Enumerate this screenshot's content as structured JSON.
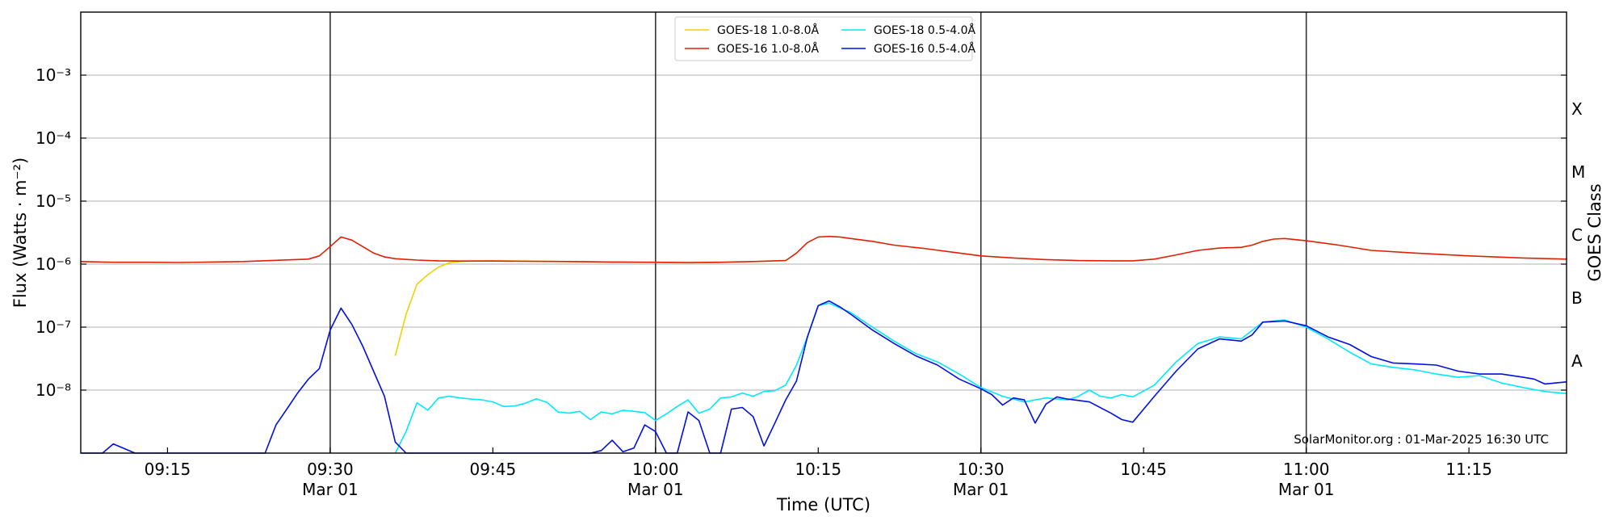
{
  "chart_data": {
    "type": "line",
    "xlabel": "Time (UTC)",
    "ylabel": "Flux (Watts · m⁻²)",
    "ylabel_right": "GOES Class",
    "y_scale": "log",
    "ylim": [
      1e-09,
      0.01
    ],
    "xlim": [
      "09:07",
      "11:24"
    ],
    "grid": "horizontal at decades",
    "legend_position": "top-center",
    "y_ticks": [
      {
        "value": 1e-08,
        "label": "10⁻⁸"
      },
      {
        "value": 1e-07,
        "label": "10⁻⁷"
      },
      {
        "value": 1e-06,
        "label": "10⁻⁶"
      },
      {
        "value": 1e-05,
        "label": "10⁻⁵"
      },
      {
        "value": 0.0001,
        "label": "10⁻⁴"
      },
      {
        "value": 0.001,
        "label": "10⁻³"
      }
    ],
    "x_ticks": [
      {
        "time": "09:15",
        "label": "09:15",
        "sublabel": ""
      },
      {
        "time": "09:30",
        "label": "09:30",
        "sublabel": "Mar 01"
      },
      {
        "time": "09:45",
        "label": "09:45",
        "sublabel": ""
      },
      {
        "time": "10:00",
        "label": "10:00",
        "sublabel": "Mar 01"
      },
      {
        "time": "10:15",
        "label": "10:15",
        "sublabel": ""
      },
      {
        "time": "10:30",
        "label": "10:30",
        "sublabel": "Mar 01"
      },
      {
        "time": "10:45",
        "label": "10:45",
        "sublabel": ""
      },
      {
        "time": "11:00",
        "label": "11:00",
        "sublabel": "Mar 01"
      },
      {
        "time": "11:15",
        "label": "11:15",
        "sublabel": ""
      }
    ],
    "vertical_lines": [
      "09:30",
      "10:00",
      "10:30",
      "11:00"
    ],
    "goes_classes": [
      {
        "label": "A",
        "flux": 3e-08
      },
      {
        "label": "B",
        "flux": 3e-07
      },
      {
        "label": "C",
        "flux": 3e-06
      },
      {
        "label": "M",
        "flux": 3e-05
      },
      {
        "label": "X",
        "flux": 0.0003
      }
    ],
    "legend": [
      {
        "label": "GOES-18 1.0-8.0Å",
        "color": "#f0d000"
      },
      {
        "label": "GOES-16 1.0-8.0Å",
        "color": "#e02000"
      },
      {
        "label": "GOES-18 0.5-4.0Å",
        "color": "#00e8ff"
      },
      {
        "label": "GOES-16 0.5-4.0Å",
        "color": "#0010e0"
      }
    ],
    "series": [
      {
        "name": "GOES-18 1.0-8.0Å",
        "color": "#f0d000",
        "x": [
          "09:36",
          "09:37",
          "09:38",
          "09:39",
          "09:40",
          "09:41",
          "09:42",
          "09:43",
          "09:45",
          "09:48",
          "09:52",
          "09:56",
          "10:00",
          "10:03",
          "10:06"
        ],
        "y": [
          3.5e-08,
          1.6e-07,
          4.8e-07,
          6.8e-07,
          9e-07,
          1.05e-06,
          1.1e-06,
          1.12e-06,
          1.13e-06,
          1.12e-06,
          1.1e-06,
          1.08e-06,
          1.06e-06,
          1.05e-06,
          1.06e-06
        ]
      },
      {
        "name": "GOES-16 1.0-8.0Å",
        "color": "#e02000",
        "x": [
          "09:07",
          "09:10",
          "09:13",
          "09:16",
          "09:19",
          "09:22",
          "09:25",
          "09:28",
          "09:29",
          "09:30",
          "09:31",
          "09:32",
          "09:33",
          "09:34",
          "09:35",
          "09:36",
          "09:38",
          "09:40",
          "09:42",
          "09:45",
          "09:48",
          "09:52",
          "09:56",
          "10:00",
          "10:03",
          "10:06",
          "10:09",
          "10:12",
          "10:13",
          "10:14",
          "10:15",
          "10:16",
          "10:17",
          "10:18",
          "10:20",
          "10:22",
          "10:25",
          "10:28",
          "10:30",
          "10:33",
          "10:36",
          "10:39",
          "10:42",
          "10:44",
          "10:46",
          "10:48",
          "10:50",
          "10:52",
          "10:54",
          "10:55",
          "10:56",
          "10:57",
          "10:58",
          "11:00",
          "11:03",
          "11:06",
          "11:10",
          "11:15",
          "11:20",
          "11:24"
        ],
        "y": [
          1.1e-06,
          1.07e-06,
          1.07e-06,
          1.06e-06,
          1.08e-06,
          1.1e-06,
          1.15e-06,
          1.2e-06,
          1.35e-06,
          1.9e-06,
          2.7e-06,
          2.4e-06,
          1.9e-06,
          1.5e-06,
          1.3e-06,
          1.22e-06,
          1.16e-06,
          1.13e-06,
          1.12e-06,
          1.12e-06,
          1.11e-06,
          1.1e-06,
          1.08e-06,
          1.07e-06,
          1.06e-06,
          1.07e-06,
          1.1e-06,
          1.14e-06,
          1.5e-06,
          2.2e-06,
          2.7e-06,
          2.75e-06,
          2.7e-06,
          2.55e-06,
          2.3e-06,
          2e-06,
          1.75e-06,
          1.5e-06,
          1.35e-06,
          1.25e-06,
          1.18e-06,
          1.14e-06,
          1.13e-06,
          1.13e-06,
          1.2e-06,
          1.4e-06,
          1.65e-06,
          1.8e-06,
          1.85e-06,
          2e-06,
          2.3e-06,
          2.5e-06,
          2.55e-06,
          2.35e-06,
          2e-06,
          1.65e-06,
          1.5e-06,
          1.35e-06,
          1.25e-06,
          1.2e-06
        ]
      },
      {
        "name": "GOES-18 0.5-4.0Å",
        "color": "#00e8ff",
        "x": [
          "09:36",
          "09:37",
          "09:38",
          "09:39",
          "09:40",
          "09:41",
          "09:42",
          "09:43",
          "09:44",
          "09:45",
          "09:46",
          "09:47",
          "09:48",
          "09:49",
          "09:50",
          "09:51",
          "09:52",
          "09:53",
          "09:54",
          "09:55",
          "09:56",
          "09:57",
          "09:58",
          "09:59",
          "10:00",
          "10:01",
          "10:02",
          "10:03",
          "10:04",
          "10:05",
          "10:06",
          "10:07",
          "10:08",
          "10:09",
          "10:10",
          "10:11",
          "10:12",
          "10:13",
          "10:14",
          "10:15",
          "10:16",
          "10:18",
          "10:20",
          "10:22",
          "10:24",
          "10:26",
          "10:28",
          "10:30",
          "10:32",
          "10:34",
          "10:36",
          "10:38",
          "10:39",
          "10:40",
          "10:41",
          "10:42",
          "10:43",
          "10:44",
          "10:46",
          "10:48",
          "10:50",
          "10:52",
          "10:54",
          "10:56",
          "10:58",
          "11:00",
          "11:02",
          "11:04",
          "11:06",
          "11:08",
          "11:10",
          "11:12",
          "11:14",
          "11:16",
          "11:18",
          "11:20",
          "11:22",
          "11:24"
        ],
        "y": [
          1e-09,
          2.2e-09,
          6.3e-09,
          4.8e-09,
          7.5e-09,
          8e-09,
          7.5e-09,
          7.2e-09,
          7e-09,
          6.5e-09,
          5.5e-09,
          5.6e-09,
          6.2e-09,
          7.3e-09,
          6.4e-09,
          4.5e-09,
          4.3e-09,
          4.6e-09,
          3.4e-09,
          4.5e-09,
          4.2e-09,
          4.8e-09,
          4.6e-09,
          4.4e-09,
          3.3e-09,
          4.2e-09,
          5.5e-09,
          7e-09,
          4.3e-09,
          5e-09,
          7.5e-09,
          7.8e-09,
          9e-09,
          8e-09,
          9.5e-09,
          9.8e-09,
          1.2e-08,
          2.5e-08,
          7e-08,
          2.2e-07,
          2.4e-07,
          1.7e-07,
          1e-07,
          6e-08,
          3.8e-08,
          2.8e-08,
          1.8e-08,
          1.1e-08,
          8e-09,
          6.5e-09,
          7.5e-09,
          7e-09,
          8e-09,
          1e-08,
          8e-09,
          7.5e-09,
          8.5e-09,
          7.8e-09,
          1.2e-08,
          2.8e-08,
          5.5e-08,
          7e-08,
          6.5e-08,
          1.2e-07,
          1.3e-07,
          1e-07,
          6.5e-08,
          4e-08,
          2.6e-08,
          2.3e-08,
          2.1e-08,
          1.8e-08,
          1.6e-08,
          1.7e-08,
          1.3e-08,
          1.1e-08,
          9.5e-09,
          8.8e-09
        ]
      },
      {
        "name": "GOES-16 0.5-4.0Å",
        "color": "#0010e0",
        "x": [
          "09:07",
          "09:08",
          "09:09",
          "09:10",
          "09:12",
          "09:15",
          "09:20",
          "09:24",
          "09:25",
          "09:26",
          "09:27",
          "09:28",
          "09:29",
          "09:30",
          "09:31",
          "09:32",
          "09:33",
          "09:34",
          "09:35",
          "09:36",
          "09:37",
          "09:38",
          "09:40",
          "09:45",
          "09:50",
          "09:54",
          "09:55",
          "09:56",
          "09:57",
          "09:58",
          "09:59",
          "10:00",
          "10:01",
          "10:02",
          "10:03",
          "10:04",
          "10:05",
          "10:06",
          "10:07",
          "10:08",
          "10:09",
          "10:10",
          "10:11",
          "10:12",
          "10:13",
          "10:14",
          "10:15",
          "10:16",
          "10:17",
          "10:18",
          "10:20",
          "10:22",
          "10:24",
          "10:26",
          "10:28",
          "10:30",
          "10:31",
          "10:32",
          "10:33",
          "10:34",
          "10:35",
          "10:36",
          "10:37",
          "10:38",
          "10:40",
          "10:42",
          "10:43",
          "10:44",
          "10:46",
          "10:48",
          "10:50",
          "10:52",
          "10:54",
          "10:55",
          "10:56",
          "10:58",
          "11:00",
          "11:02",
          "11:04",
          "11:06",
          "11:08",
          "11:10",
          "11:12",
          "11:14",
          "11:16",
          "11:18",
          "11:20",
          "11:21",
          "11:22",
          "11:24"
        ],
        "y": [
          1e-09,
          1e-09,
          1e-09,
          1.4e-09,
          1e-09,
          1e-09,
          1e-09,
          1e-09,
          2.8e-09,
          5e-09,
          9e-09,
          1.5e-08,
          2.2e-08,
          9e-08,
          2e-07,
          1.1e-07,
          5e-08,
          2e-08,
          8e-09,
          1.5e-09,
          1e-09,
          1e-09,
          1e-09,
          1e-09,
          1e-09,
          1e-09,
          1.1e-09,
          1.6e-09,
          1.05e-09,
          1.2e-09,
          2.8e-09,
          2.2e-09,
          1e-09,
          1e-09,
          4.5e-09,
          3.3e-09,
          1e-09,
          1e-09,
          5e-09,
          5.3e-09,
          3.8e-09,
          1.3e-09,
          3e-09,
          7e-09,
          1.4e-08,
          7e-08,
          2.2e-07,
          2.6e-07,
          2.1e-07,
          1.6e-07,
          9e-08,
          5.5e-08,
          3.5e-08,
          2.5e-08,
          1.5e-08,
          1.05e-08,
          8.5e-09,
          5.8e-09,
          7.5e-09,
          7e-09,
          3e-09,
          6e-09,
          7.8e-09,
          7.2e-09,
          6.5e-09,
          4.3e-09,
          3.4e-09,
          3.1e-09,
          8e-09,
          2e-08,
          4.5e-08,
          6.5e-08,
          6e-08,
          7.5e-08,
          1.2e-07,
          1.25e-07,
          1.05e-07,
          7e-08,
          5.3e-08,
          3.4e-08,
          2.7e-08,
          2.6e-08,
          2.5e-08,
          2e-08,
          1.8e-08,
          1.8e-08,
          1.6e-08,
          1.5e-08,
          1.25e-08,
          1.35e-08
        ]
      }
    ]
  },
  "watermark": "SolarMonitor.org : 01-Mar-2025 16:30 UTC"
}
